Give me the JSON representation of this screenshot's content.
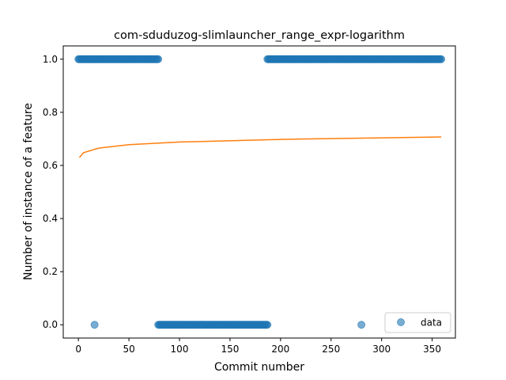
{
  "chart_data": {
    "type": "scatter",
    "title": "com-sduduzog-slimlauncher_range_expr-logarithm",
    "xlabel": "Commit number",
    "ylabel": "Number of instance of a feature",
    "xlim": [
      -15,
      373
    ],
    "ylim": [
      -0.05,
      1.05
    ],
    "xticks": [
      0,
      50,
      100,
      150,
      200,
      250,
      300,
      350
    ],
    "yticks": [
      0.0,
      0.2,
      0.4,
      0.6,
      0.8,
      1.0
    ],
    "ytick_labels": [
      "0.0",
      "0.2",
      "0.4",
      "0.6",
      "0.8",
      "1.0"
    ],
    "grid": false,
    "legend": {
      "position": "lower-right",
      "entries": [
        {
          "label": "data"
        }
      ]
    },
    "series": [
      {
        "name": "data",
        "kind": "scatter",
        "color": "#1f77b4",
        "alpha": 0.6,
        "segments": [
          {
            "x_start": 0,
            "x_end": 79,
            "y": 1.0
          },
          {
            "x_start": 79,
            "x_end": 187,
            "y": 0.0
          },
          {
            "x_start": 187,
            "x_end": 359,
            "y": 1.0
          }
        ],
        "points": [
          {
            "x": 16,
            "y": 0.0
          },
          {
            "x": 280,
            "y": 0.0
          }
        ]
      },
      {
        "kind": "line",
        "color": "#ff7f0e",
        "function": "logarithm",
        "points": [
          {
            "x": 1,
            "y": 0.63
          },
          {
            "x": 5,
            "y": 0.648
          },
          {
            "x": 20,
            "y": 0.665
          },
          {
            "x": 50,
            "y": 0.678
          },
          {
            "x": 100,
            "y": 0.688
          },
          {
            "x": 200,
            "y": 0.698
          },
          {
            "x": 300,
            "y": 0.704
          },
          {
            "x": 359,
            "y": 0.707
          }
        ]
      }
    ]
  }
}
